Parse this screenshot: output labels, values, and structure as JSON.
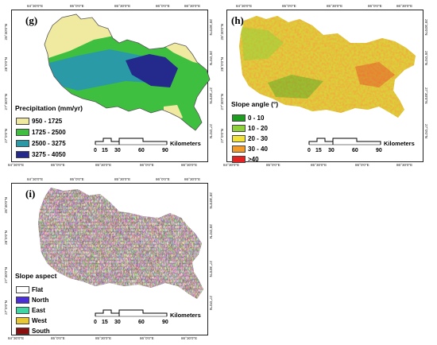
{
  "panels": {
    "g": {
      "letter": "(g)",
      "legend_title": "Precipitation (mm/yr)",
      "legend": [
        {
          "label": "950 - 1725",
          "color": "#efeaa0"
        },
        {
          "label": "1725 - 2500",
          "color": "#3fbf3f"
        },
        {
          "label": "2500 - 3275",
          "color": "#2a9aa6"
        },
        {
          "label": "3275 - 4050",
          "color": "#232a8c"
        }
      ]
    },
    "h": {
      "letter": "(h)",
      "legend_title": "Slope angle (°)",
      "legend": [
        {
          "label": "0 - 10",
          "color": "#1e9e1e"
        },
        {
          "label": "10 - 20",
          "color": "#8fd13a"
        },
        {
          "label": "20 - 30",
          "color": "#f2e33a"
        },
        {
          "label": "30 - 40",
          "color": "#f29a2a"
        },
        {
          "label": ">40",
          "color": "#e52222"
        }
      ]
    },
    "i": {
      "letter": "(i)",
      "legend_title": "Slope aspect",
      "legend": [
        {
          "label": "Flat",
          "color": "#ffffff"
        },
        {
          "label": "North",
          "color": "#4a2fd6"
        },
        {
          "label": "East",
          "color": "#3fd6a6"
        },
        {
          "label": "West",
          "color": "#e8c832"
        },
        {
          "label": "South",
          "color": "#8a1010"
        }
      ]
    }
  },
  "scale_bar": {
    "ticks": [
      "0",
      "15",
      "30",
      "60",
      "90"
    ],
    "unit": "Kilometers"
  },
  "coordinates": {
    "lon": [
      "84°30'0\"E",
      "85°0'0\"E",
      "85°30'0\"E",
      "86°0'0\"E",
      "86°30'0\"E"
    ],
    "lat": [
      "28°30'0\"N",
      "28°0'0\"N",
      "27°30'0\"N",
      "27°0'0\"N"
    ]
  }
}
